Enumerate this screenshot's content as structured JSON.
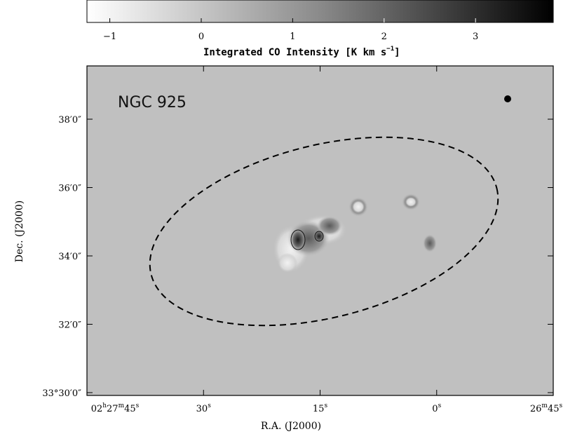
{
  "figure": {
    "colorbar": {
      "title_main": "Integrated CO Intensity [K km s",
      "title_exp": "−1",
      "title_close": "]",
      "ticks": [
        {
          "value": -1,
          "label": "−1"
        },
        {
          "value": 0,
          "label": "0"
        },
        {
          "value": 1,
          "label": "1"
        },
        {
          "value": 2,
          "label": "2"
        },
        {
          "value": 3,
          "label": "3"
        }
      ],
      "range": [
        -1.25,
        3.85
      ],
      "colormap": "white-to-black"
    },
    "map": {
      "object_label": "NGC 925",
      "background_color": "#c0c0c0",
      "xlabel": "R.A. (J2000)",
      "ylabel": "Dec. (J2000)",
      "x_ticks": [
        {
          "ra_sec": 45,
          "label_parts": [
            "02",
            "h",
            "27",
            "m",
            "45",
            "s"
          ]
        },
        {
          "ra_sec": 30,
          "label_parts": [
            "30",
            "s"
          ]
        },
        {
          "ra_sec": 15,
          "label_parts": [
            "15",
            "s"
          ]
        },
        {
          "ra_sec": 0,
          "label_parts": [
            "0",
            "s"
          ]
        },
        {
          "ra_sec": -15,
          "label_parts": [
            "26",
            "m",
            "45",
            "s"
          ]
        }
      ],
      "y_ticks": [
        {
          "dec_arcmin": 38,
          "label": "38′0″"
        },
        {
          "dec_arcmin": 36,
          "label": "36′0″"
        },
        {
          "dec_arcmin": 34,
          "label": "34′0″"
        },
        {
          "dec_arcmin": 32,
          "label": "32′0″"
        },
        {
          "dec_arcmin": 30,
          "label": "33°30′0″"
        }
      ],
      "beam": "filled circle",
      "ellipse": "dashed"
    }
  }
}
